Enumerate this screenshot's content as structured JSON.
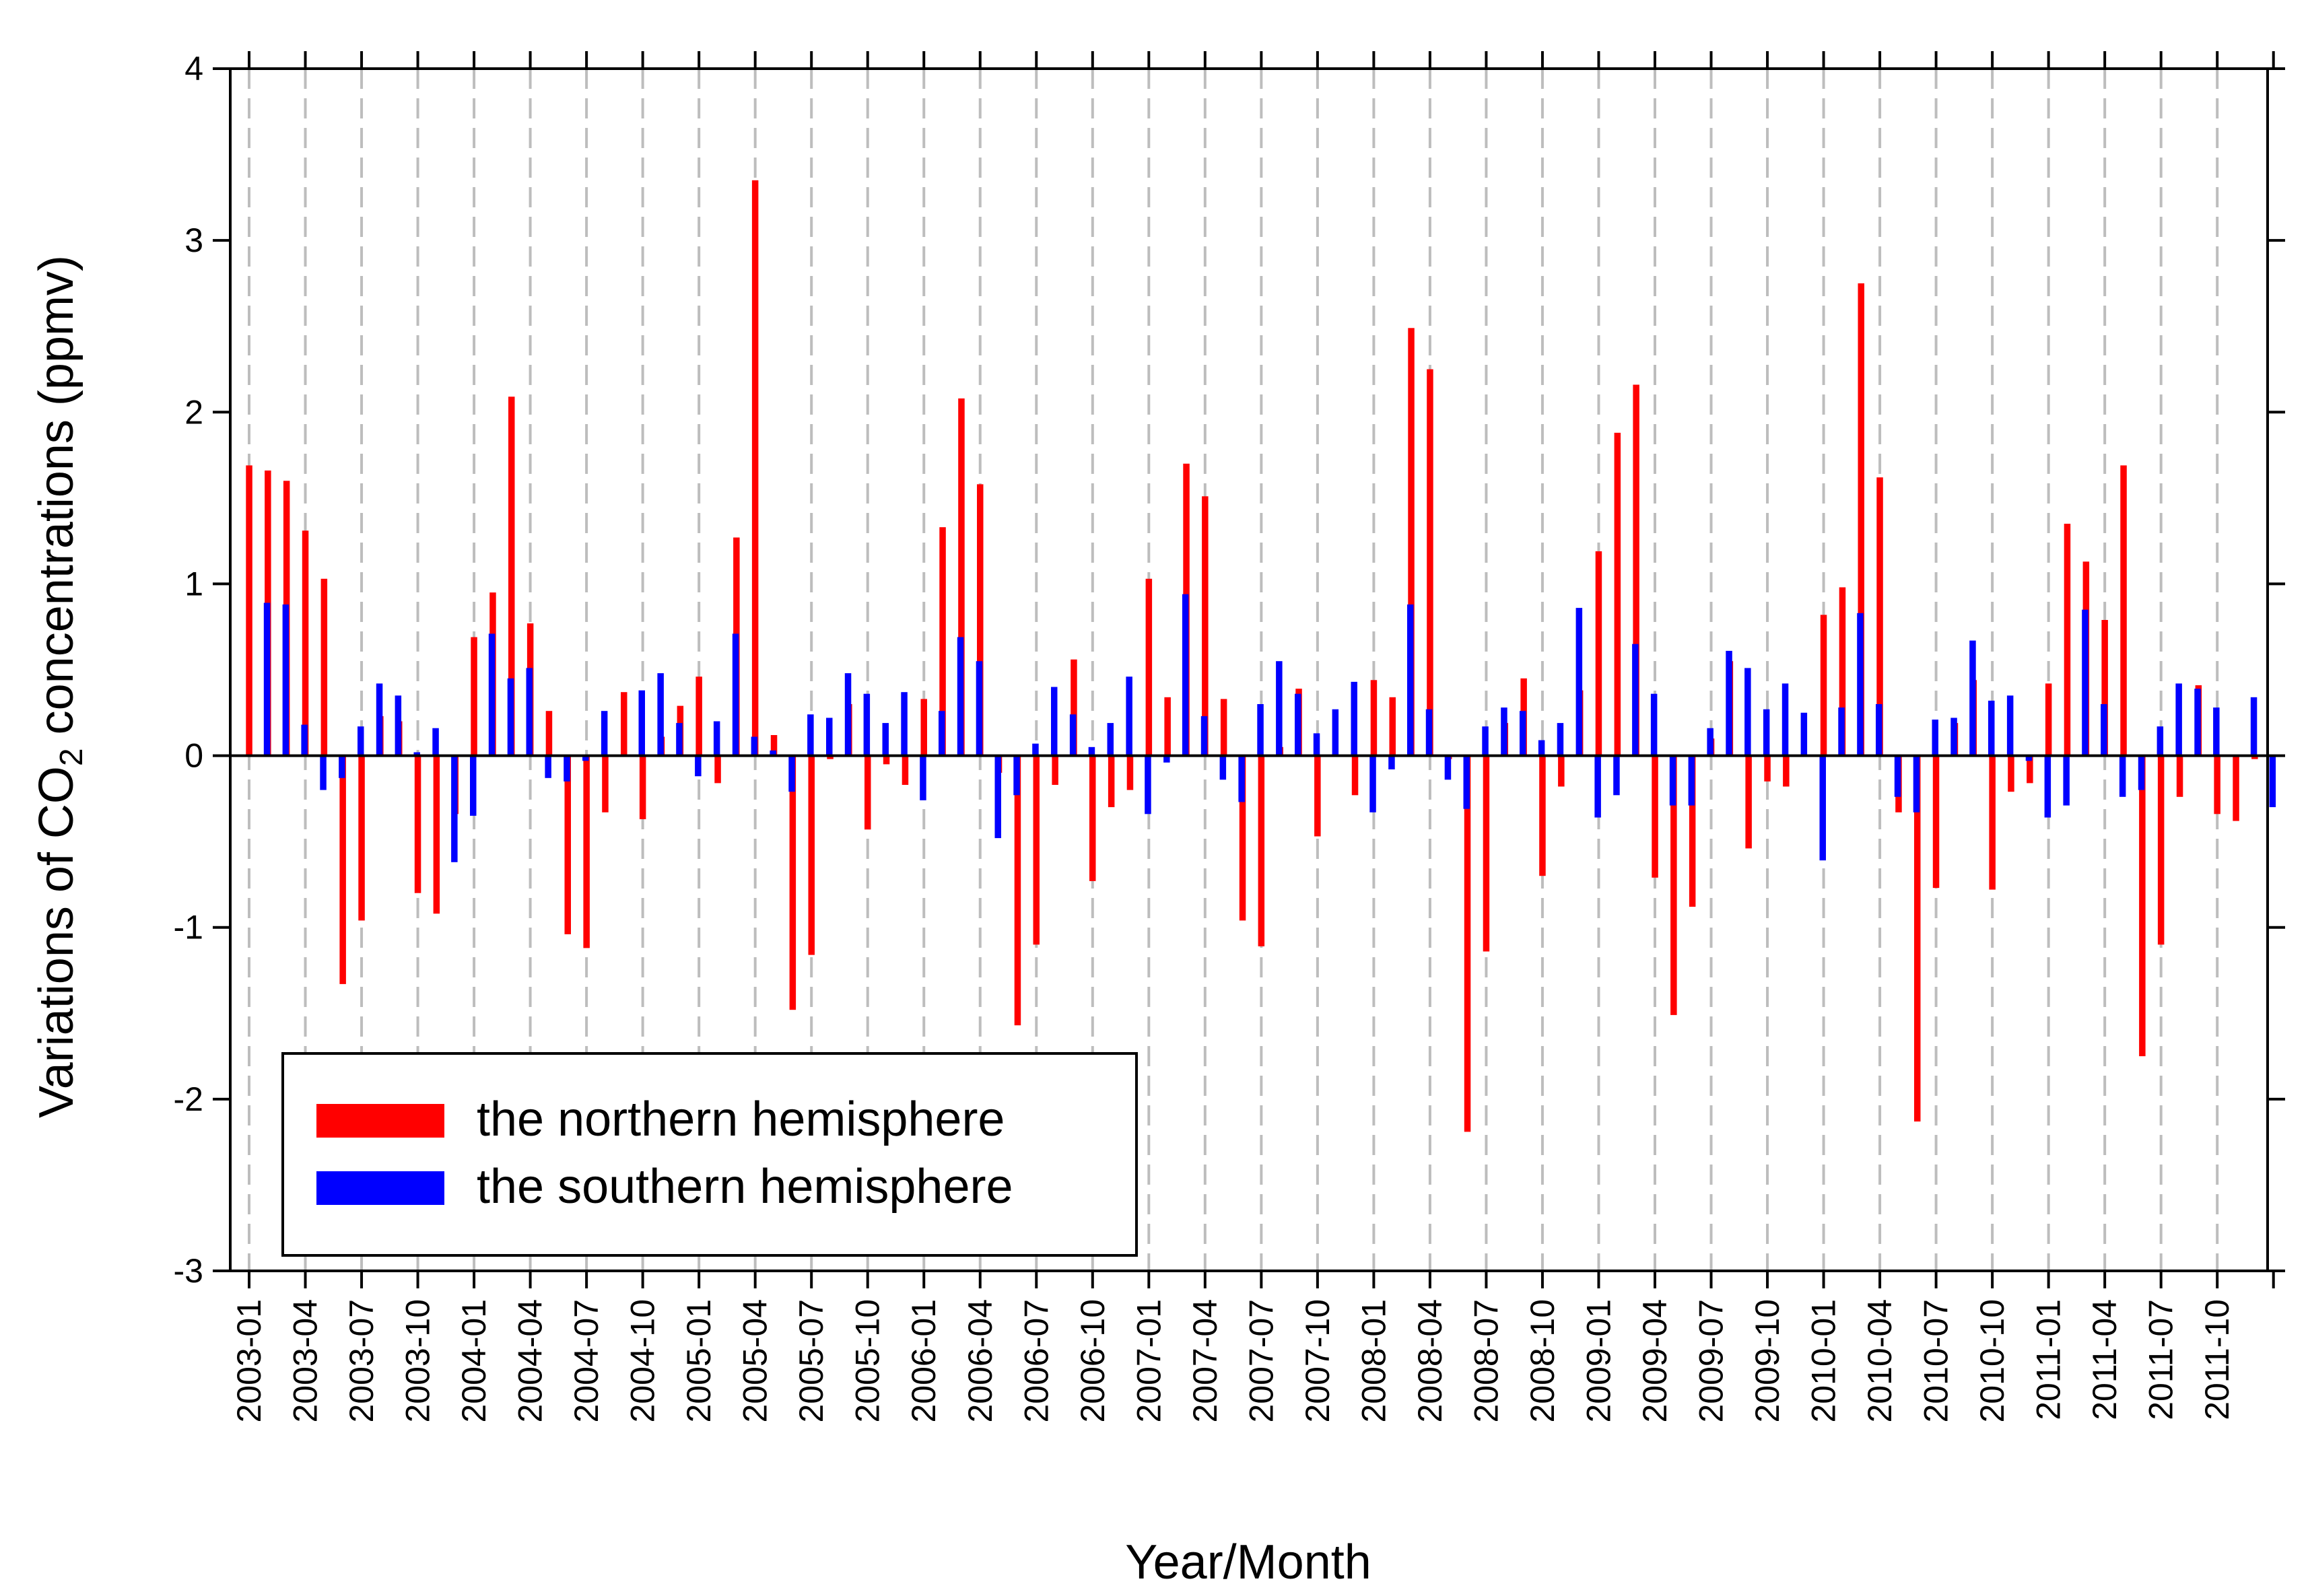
{
  "chart_data": {
    "type": "bar",
    "title": "",
    "xlabel": "Year/Month",
    "ylabel": {
      "prefix": "Variations of CO",
      "subscript": "2",
      "suffix": " concentrations (ppmv)"
    },
    "ylim": [
      -3,
      4
    ],
    "yticks": [
      4,
      3,
      2,
      1,
      0,
      -1,
      -2,
      -3
    ],
    "ytick_labels": [
      "4",
      "3",
      "2",
      "1",
      "0",
      "-1",
      "-2",
      "-3"
    ],
    "grid": "vertical dashed",
    "legend_position": "bottom-left",
    "categories": [
      "2003-01",
      "2003-02",
      "2003-03",
      "2003-04",
      "2003-05",
      "2003-06",
      "2003-07",
      "2003-08",
      "2003-09",
      "2003-10",
      "2003-11",
      "2003-12",
      "2004-01",
      "2004-02",
      "2004-03",
      "2004-04",
      "2004-05",
      "2004-06",
      "2004-07",
      "2004-08",
      "2004-09",
      "2004-10",
      "2004-11",
      "2004-12",
      "2005-01",
      "2005-02",
      "2005-03",
      "2005-04",
      "2005-05",
      "2005-06",
      "2005-07",
      "2005-08",
      "2005-09",
      "2005-10",
      "2005-11",
      "2005-12",
      "2006-01",
      "2006-02",
      "2006-03",
      "2006-04",
      "2006-05",
      "2006-06",
      "2006-07",
      "2006-08",
      "2006-09",
      "2006-10",
      "2006-11",
      "2006-12",
      "2007-01",
      "2007-02",
      "2007-03",
      "2007-04",
      "2007-05",
      "2007-06",
      "2007-07",
      "2007-08",
      "2007-09",
      "2007-10",
      "2007-11",
      "2007-12",
      "2008-01",
      "2008-02",
      "2008-03",
      "2008-04",
      "2008-05",
      "2008-06",
      "2008-07",
      "2008-08",
      "2008-09",
      "2008-10",
      "2008-11",
      "2008-12",
      "2009-01",
      "2009-02",
      "2009-03",
      "2009-04",
      "2009-05",
      "2009-06",
      "2009-07",
      "2009-08",
      "2009-09",
      "2009-10",
      "2009-11",
      "2009-12",
      "2010-01",
      "2010-02",
      "2010-03",
      "2010-04",
      "2010-05",
      "2010-06",
      "2010-07",
      "2010-08",
      "2010-09",
      "2010-10",
      "2010-11",
      "2010-12",
      "2011-01",
      "2011-02",
      "2011-03",
      "2011-04",
      "2011-05",
      "2011-06",
      "2011-07",
      "2011-08",
      "2011-09",
      "2011-10",
      "2011-11",
      "2011-12"
    ],
    "xtick_labels": [
      "2003-01",
      "2003-04",
      "2003-07",
      "2003-10",
      "2004-01",
      "2004-04",
      "2004-07",
      "2004-10",
      "2005-01",
      "2005-04",
      "2005-07",
      "2005-10",
      "2006-01",
      "2006-04",
      "2006-07",
      "2006-10",
      "2007-01",
      "2007-04",
      "2007-07",
      "2007-10",
      "2008-01",
      "2008-04",
      "2008-07",
      "2008-10",
      "2009-01",
      "2009-04",
      "2009-07",
      "2009-10",
      "2010-01",
      "2010-04",
      "2010-07",
      "2010-10",
      "2011-01",
      "2011-04",
      "2011-07",
      "2011-10"
    ],
    "series": [
      {
        "name": "the northern hemisphere",
        "color": "#ff0000",
        "values": [
          1.69,
          1.66,
          1.6,
          1.31,
          1.03,
          -1.33,
          -0.96,
          0.23,
          0.2,
          -0.8,
          -0.92,
          -0.34,
          0.69,
          0.95,
          2.09,
          0.77,
          0.26,
          -1.04,
          -1.12,
          -0.33,
          0.37,
          -0.37,
          0.11,
          0.29,
          0.46,
          -0.16,
          1.27,
          3.35,
          0.12,
          -1.48,
          -1.16,
          -0.02,
          0.3,
          -0.43,
          -0.05,
          -0.17,
          0.33,
          1.33,
          2.08,
          1.58,
          -0.1,
          -1.57,
          -1.1,
          -0.17,
          0.56,
          -0.73,
          -0.3,
          -0.2,
          1.03,
          0.34,
          1.7,
          1.51,
          0.33,
          -0.96,
          -1.11,
          0.05,
          0.39,
          -0.47,
          0.0,
          -0.23,
          0.44,
          0.34,
          2.49,
          2.25,
          -0.02,
          -2.19,
          -1.14,
          0.19,
          0.45,
          -0.7,
          -0.18,
          0.38,
          1.19,
          1.88,
          2.16,
          -0.71,
          -1.51,
          -0.88,
          0.1,
          0.55,
          -0.54,
          -0.15,
          -0.18,
          -0.0,
          0.82,
          0.98,
          2.75,
          1.62,
          -0.33,
          -2.13,
          -0.77,
          0.19,
          0.44,
          -0.78,
          -0.21,
          -0.16,
          0.42,
          1.35,
          1.13,
          0.79,
          1.69,
          -1.75,
          -1.1,
          -0.24,
          0.41,
          -0.34,
          -0.38,
          -0.02
        ]
      },
      {
        "name": "the southern hemisphere",
        "color": "#0000ff",
        "values": [
          0.89,
          0.88,
          0.18,
          -0.2,
          -0.13,
          0.17,
          0.42,
          0.35,
          0.02,
          0.16,
          -0.62,
          -0.35,
          0.71,
          0.45,
          0.51,
          -0.13,
          -0.15,
          -0.03,
          0.26,
          0.0,
          0.38,
          0.48,
          0.19,
          -0.12,
          0.2,
          0.71,
          0.11,
          0.03,
          -0.21,
          0.24,
          0.22,
          0.48,
          0.36,
          0.19,
          0.37,
          -0.26,
          0.26,
          0.69,
          0.55,
          -0.48,
          -0.23,
          0.07,
          0.4,
          0.24,
          0.05,
          0.19,
          0.46,
          -0.34,
          -0.04,
          0.94,
          0.23,
          -0.14,
          -0.27,
          0.3,
          0.55,
          0.36,
          0.13,
          0.27,
          0.43,
          -0.33,
          -0.08,
          0.88,
          0.27,
          -0.14,
          -0.31,
          0.17,
          0.28,
          0.26,
          0.09,
          0.19,
          0.86,
          -0.36,
          -0.23,
          0.65,
          0.36,
          -0.29,
          -0.29,
          0.16,
          0.61,
          0.51,
          0.27,
          0.42,
          0.25,
          -0.61,
          0.28,
          0.83,
          0.3,
          -0.24,
          -0.33,
          0.21,
          0.22,
          0.67,
          0.32,
          0.35,
          -0.03,
          -0.36,
          -0.29,
          0.85,
          0.3,
          -0.24,
          -0.2,
          0.17,
          0.42,
          0.39,
          0.28,
          0.0,
          0.34,
          -0.3
        ]
      }
    ]
  }
}
